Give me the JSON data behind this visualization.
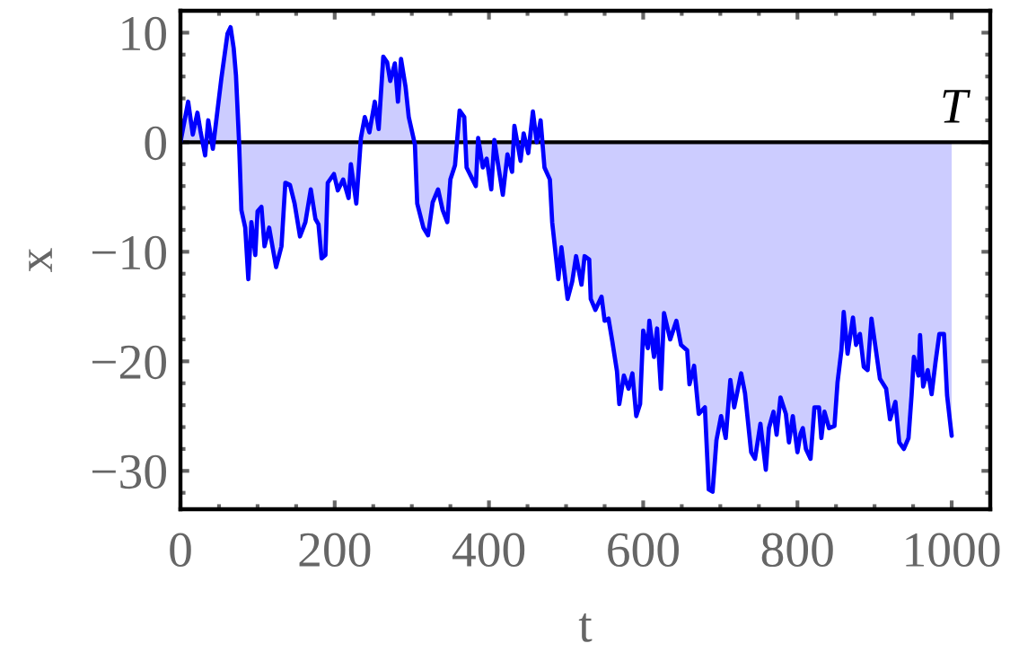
{
  "chart_data": {
    "type": "area",
    "xlabel": "t",
    "ylabel": "x",
    "x": [
      0,
      10,
      16,
      22,
      26,
      32,
      36,
      42,
      48,
      53,
      61,
      65,
      69,
      72,
      76,
      79,
      84,
      88,
      92,
      97,
      100,
      105,
      109,
      115,
      124,
      131,
      136,
      142,
      148,
      155,
      162,
      169,
      175,
      179,
      183,
      188,
      191,
      199,
      204,
      211,
      218,
      221,
      228,
      234,
      239,
      245,
      252,
      257,
      263,
      268,
      272,
      278,
      282,
      286,
      292,
      296,
      304,
      307,
      315,
      321,
      327,
      334,
      340,
      346,
      350,
      356,
      362,
      368,
      371,
      383,
      386,
      392,
      397,
      403,
      407,
      412,
      418,
      424,
      430,
      433,
      441,
      445,
      451,
      457,
      462,
      467,
      472,
      479,
      482,
      490,
      494,
      502,
      508,
      513,
      520,
      524,
      530,
      532,
      538,
      546,
      550,
      555,
      560,
      566,
      569,
      575,
      581,
      586,
      591,
      596,
      600,
      606,
      608,
      614,
      618,
      623,
      627,
      635,
      643,
      649,
      657,
      660,
      666,
      672,
      680,
      685,
      690,
      695,
      701,
      707,
      713,
      718,
      727,
      732,
      740,
      745,
      752,
      759,
      763,
      769,
      773,
      778,
      785,
      789,
      794,
      800,
      804,
      807,
      811,
      817,
      822,
      828,
      831,
      835,
      841,
      848,
      852,
      857,
      860,
      865,
      872,
      876,
      881,
      886,
      891,
      896,
      901,
      907,
      915,
      920,
      927,
      932,
      938,
      944,
      948,
      951,
      957,
      959,
      963,
      969,
      974,
      979,
      984,
      990,
      994,
      1000
    ],
    "series": [
      {
        "color": "#0000ff",
        "values": [
          0,
          3.7,
          0.7,
          2.7,
          1,
          -1.2,
          2,
          -0.6,
          2.9,
          5.8,
          9.9,
          10.5,
          8.6,
          6.1,
          0,
          -6.2,
          -7.8,
          -12.5,
          -7.3,
          -10.3,
          -6.3,
          -5.9,
          -9.5,
          -7.8,
          -11.4,
          -9.5,
          -3.7,
          -3.9,
          -5.6,
          -8.6,
          -7.3,
          -4.3,
          -7,
          -7.5,
          -10.6,
          -10.3,
          -3.7,
          -2.9,
          -4.4,
          -3.4,
          -5.1,
          -2,
          -5.6,
          0.4,
          2.3,
          0.9,
          3.7,
          1.2,
          7.8,
          7.3,
          5.6,
          7.2,
          3.7,
          7.6,
          5,
          2.3,
          -0.2,
          -5.6,
          -7.8,
          -8.5,
          -5.5,
          -4.3,
          -6.2,
          -7.3,
          -3.4,
          -2.1,
          2.9,
          2.3,
          -2.3,
          -4,
          0.4,
          -2.3,
          -1.5,
          -4.3,
          0.2,
          -2.1,
          -4.8,
          -1.1,
          -2.7,
          1.5,
          -1.7,
          0.8,
          -1,
          2.8,
          0,
          2,
          -2.3,
          -3.4,
          -7.3,
          -12.5,
          -9.6,
          -14.3,
          -12.7,
          -10.4,
          -13,
          -10.4,
          -10.7,
          -14.3,
          -15.3,
          -14.1,
          -16.3,
          -16.1,
          -18.2,
          -20.9,
          -23.9,
          -21.3,
          -22.5,
          -21.1,
          -25,
          -23.9,
          -17.2,
          -18.8,
          -16.3,
          -19.6,
          -17,
          -22.5,
          -15.6,
          -18,
          -16.3,
          -18.5,
          -19,
          -22.1,
          -20.4,
          -24.8,
          -24.2,
          -31.7,
          -31.9,
          -27.2,
          -25,
          -27,
          -21.7,
          -24.2,
          -21.1,
          -22.9,
          -28.3,
          -28.9,
          -25.7,
          -29.9,
          -26.1,
          -24.6,
          -26.7,
          -23.3,
          -24.8,
          -27.4,
          -25,
          -28.3,
          -26.6,
          -26.1,
          -28,
          -28.9,
          -24.2,
          -24.2,
          -27,
          -24.6,
          -26.1,
          -25.9,
          -21.9,
          -19,
          -15.5,
          -19.3,
          -16,
          -18.5,
          -17.5,
          -20.5,
          -20.8,
          -16.1,
          -18.6,
          -21.6,
          -22.5,
          -25.3,
          -23.7,
          -27.4,
          -28,
          -27,
          -23.1,
          -19.6,
          -21.3,
          -17.6,
          -22.3,
          -20.8,
          -23,
          -20.1,
          -17.5,
          -17.5,
          -23.1,
          -26.8
        ]
      }
    ],
    "xlim": [
      0,
      1050
    ],
    "xticks": [
      0,
      {
        "value": 50,
        "label": null
      },
      {
        "value": 100,
        "label": null
      },
      {
        "value": 150,
        "label": null
      },
      200,
      {
        "value": 250,
        "label": null
      },
      {
        "value": 300,
        "label": null
      },
      {
        "value": 350,
        "label": null
      },
      400,
      {
        "value": 450,
        "label": null
      },
      {
        "value": 500,
        "label": null
      },
      {
        "value": 550,
        "label": null
      },
      600,
      {
        "value": 650,
        "label": null
      },
      {
        "value": 700,
        "label": null
      },
      {
        "value": 750,
        "label": null
      },
      800,
      {
        "value": 850,
        "label": null
      },
      {
        "value": 900,
        "label": null
      },
      {
        "value": 950,
        "label": null
      },
      1000
    ],
    "ylim": [
      -33.5,
      12
    ],
    "yticks": [
      {
        "value": -32,
        "label": null
      },
      {
        "value": -30,
        "label": "−30"
      },
      {
        "value": -28,
        "label": null
      },
      {
        "value": -26,
        "label": null
      },
      {
        "value": -24,
        "label": null
      },
      {
        "value": -22,
        "label": null
      },
      {
        "value": -20,
        "label": "−20"
      },
      {
        "value": -18,
        "label": null
      },
      {
        "value": -16,
        "label": null
      },
      {
        "value": -14,
        "label": null
      },
      {
        "value": -12,
        "label": null
      },
      {
        "value": -10,
        "label": "−10"
      },
      {
        "value": -8,
        "label": null
      },
      {
        "value": -6,
        "label": null
      },
      {
        "value": -4,
        "label": null
      },
      {
        "value": -2,
        "label": null
      },
      0,
      {
        "value": 2,
        "label": null
      },
      {
        "value": 4,
        "label": null
      },
      {
        "value": 6,
        "label": null
      },
      {
        "value": 8,
        "label": null
      },
      10
    ],
    "ref_lines": [
      {
        "axis": "y",
        "value": 0,
        "label": "T",
        "color": "#000000",
        "line_style": "solid"
      }
    ]
  }
}
